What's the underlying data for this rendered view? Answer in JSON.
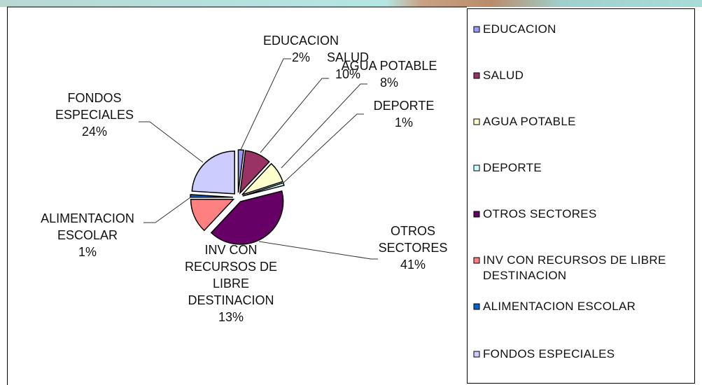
{
  "chart_data": {
    "type": "pie",
    "categories": [
      "EDUCACION",
      "SALUD",
      "AGUA POTABLE",
      "DEPORTE",
      "OTROS SECTORES",
      "INV CON RECURSOS DE LIBRE DESTINACION",
      "ALIMENTACION ESCOLAR",
      "FONDOS ESPECIALES"
    ],
    "values": [
      2,
      10,
      8,
      1,
      41,
      13,
      1,
      24
    ],
    "value_labels": [
      "2%",
      "10%",
      "8%",
      "1%",
      "41%",
      "13%",
      "1%",
      "24%"
    ],
    "colors": [
      "#9999ff",
      "#993366",
      "#ffffcc",
      "#ccffff",
      "#660066",
      "#ff8080",
      "#0066cc",
      "#ccccff"
    ],
    "legend": "right"
  }
}
